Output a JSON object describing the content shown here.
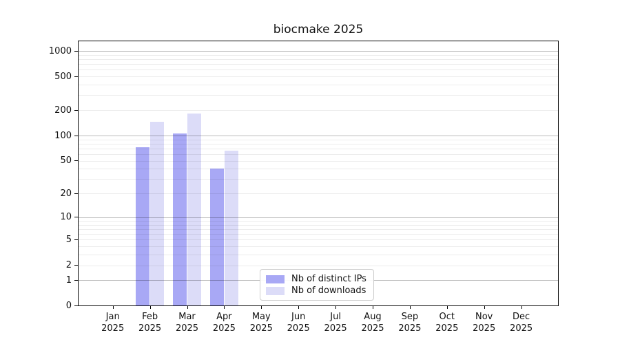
{
  "title": "biocmake 2025",
  "chart_data": {
    "type": "bar",
    "title": "biocmake 2025",
    "categories": [
      "Jan",
      "Feb",
      "Mar",
      "Apr",
      "May",
      "Jun",
      "Jul",
      "Aug",
      "Sep",
      "Oct",
      "Nov",
      "Dec"
    ],
    "year_label": "2025",
    "series": [
      {
        "name": "Nb of distinct IPs",
        "color": "#a8a8f5",
        "values": [
          0,
          73,
          106,
          40,
          0,
          0,
          0,
          0,
          0,
          0,
          0,
          0
        ]
      },
      {
        "name": "Nb of downloads",
        "color": "#dcdcf8",
        "values": [
          0,
          145,
          182,
          66,
          0,
          0,
          0,
          0,
          0,
          0,
          0,
          0
        ]
      }
    ],
    "y_scale": "log10(value+1)",
    "y_ticks": [
      0,
      1,
      2,
      5,
      10,
      20,
      50,
      100,
      200,
      500,
      1000
    ],
    "major_gridlines": [
      1,
      10,
      100,
      1000
    ],
    "minor_gridlines": [
      3,
      4,
      6,
      7,
      8,
      9,
      30,
      40,
      60,
      70,
      80,
      90,
      300,
      400,
      600,
      700,
      800,
      900
    ],
    "ylim": [
      0,
      1320
    ],
    "grid": "horizontal",
    "legend_position": "inside-lower-center",
    "xlabel": "",
    "ylabel": ""
  }
}
